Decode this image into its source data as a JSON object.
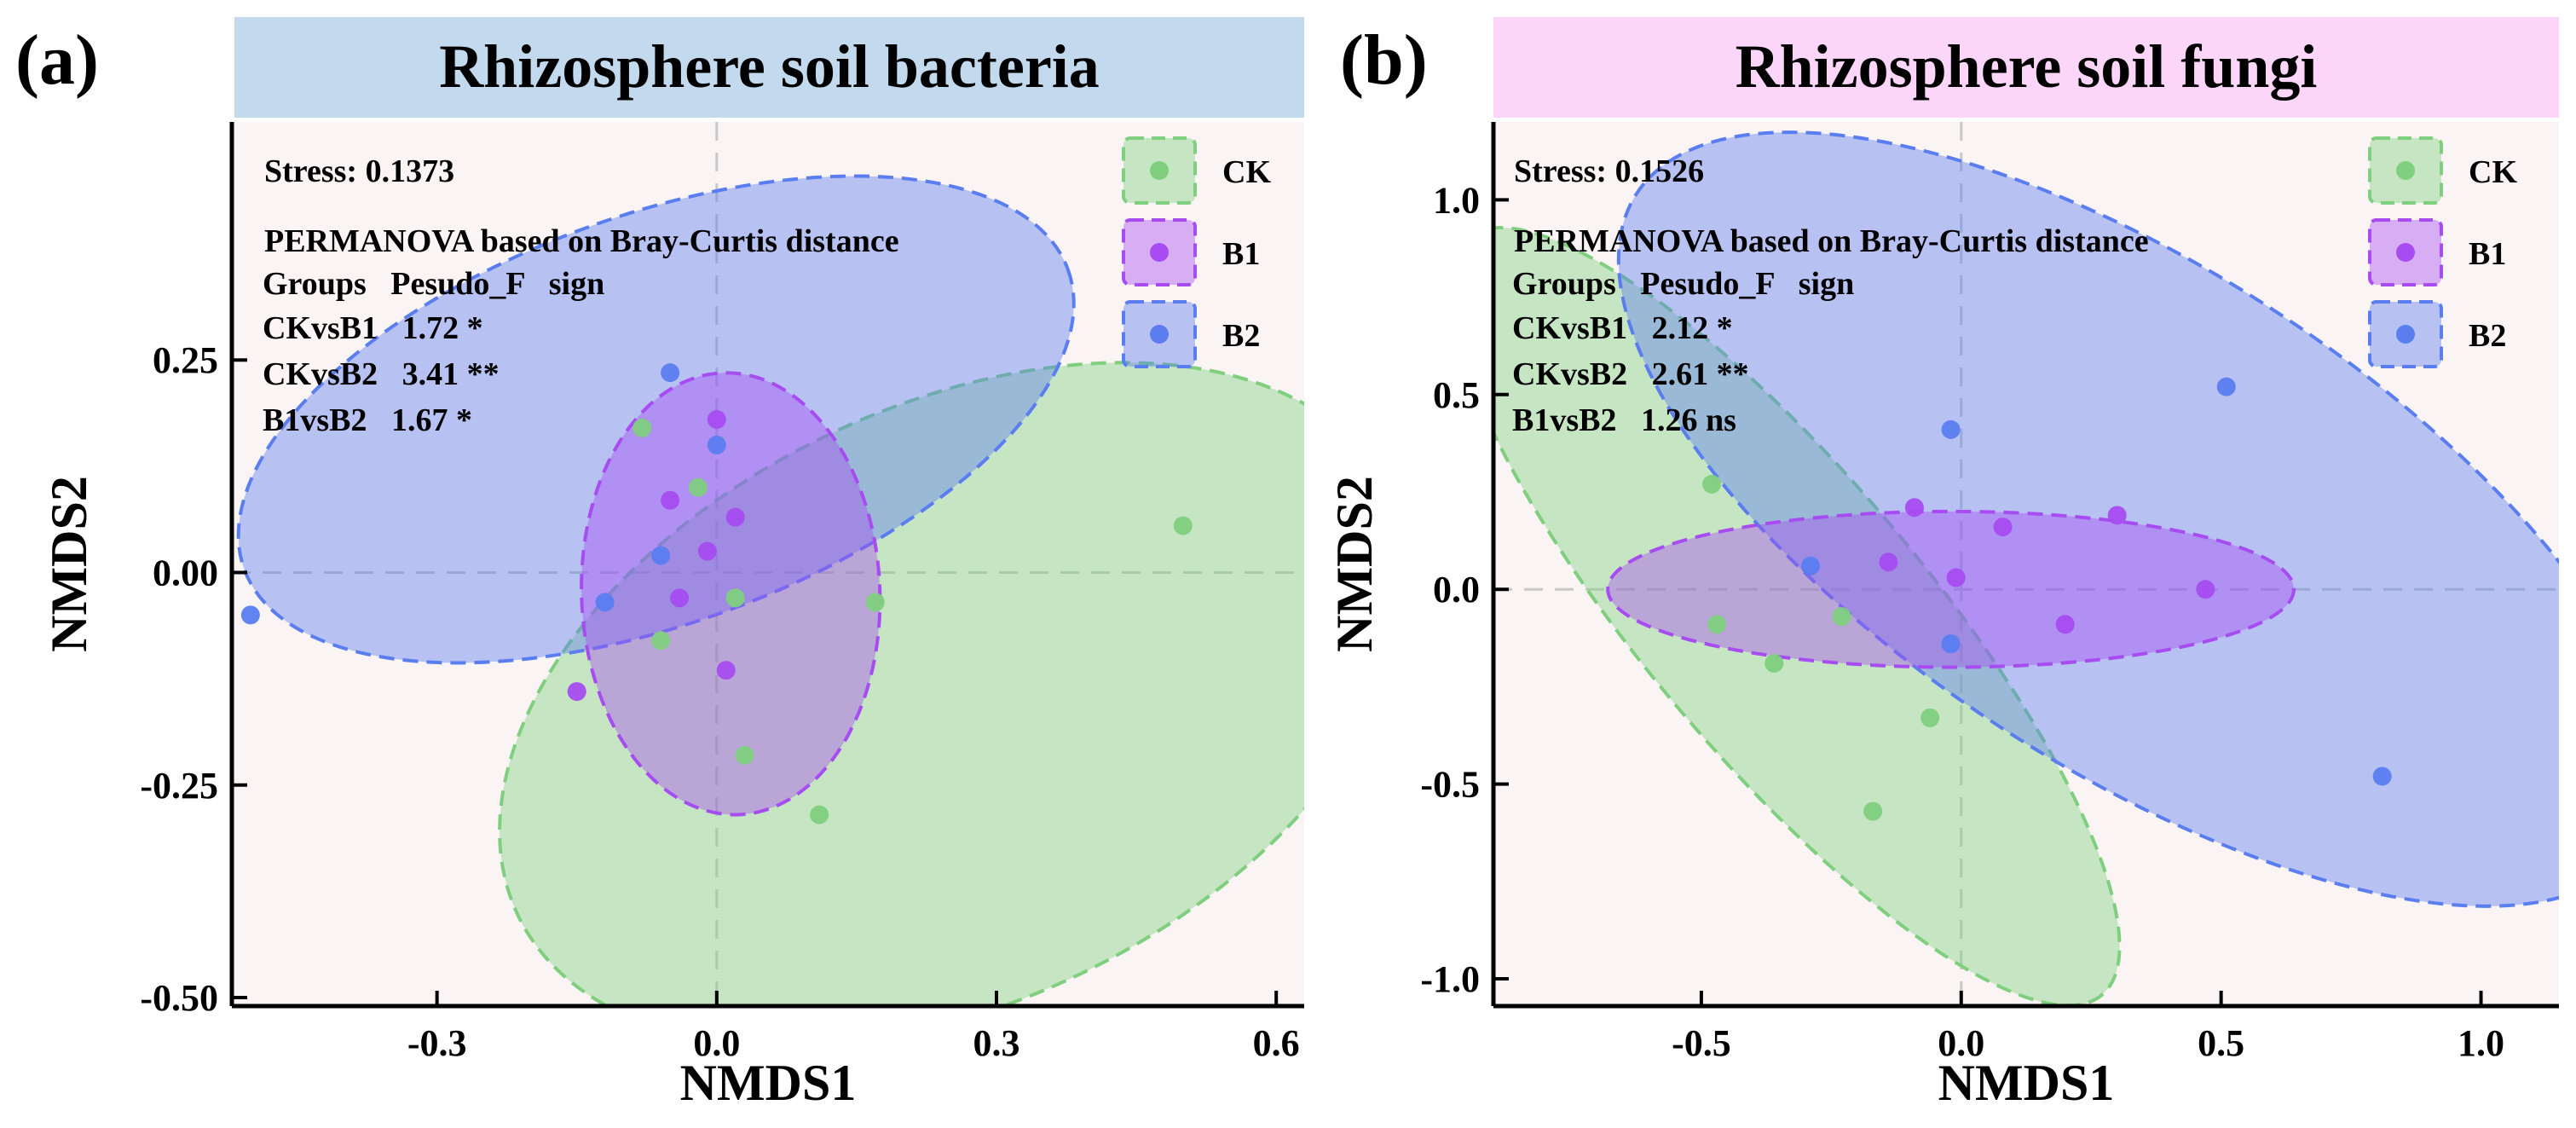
{
  "colors": {
    "CK": "#7fcf7f",
    "B1": "#a64cf0",
    "B2": "#5a7df0",
    "background": "#faf4f4",
    "titleA": "#c3d9ee",
    "titleB": "#fbd6f8"
  },
  "chart_data": [
    {
      "type": "scatter",
      "panel": "(a)",
      "title": "Rhizosphere soil bacteria",
      "xlabel": "NMDS1",
      "ylabel": "NMDS2",
      "xlim": [
        -0.52,
        0.63
      ],
      "ylim": [
        -0.51,
        0.53
      ],
      "xticks": [
        -0.3,
        0.0,
        0.3,
        0.6
      ],
      "xtick_labels": [
        "-0.3",
        "0.0",
        "0.3",
        "0.6"
      ],
      "yticks": [
        -0.5,
        -0.25,
        0.0,
        0.25
      ],
      "ytick_labels": [
        "-0.50",
        "-0.25",
        "0.00",
        "0.25"
      ],
      "annotations": {
        "stress": "Stress: 0.1373",
        "permanova": "PERMANOVA based on Bray-Curtis distance",
        "header": "Groups   Pesudo_F   sign",
        "rows": [
          "CKvsB1   1.72 *",
          "CKvsB2   3.41 **",
          "B1vsB2   1.67 *"
        ]
      },
      "legend": [
        "CK",
        "B1",
        "B2"
      ],
      "series": [
        {
          "name": "CK",
          "points": [
            [
              -0.08,
              0.17
            ],
            [
              0.5,
              0.055
            ],
            [
              0.17,
              -0.035
            ],
            [
              0.11,
              -0.285
            ],
            [
              0.03,
              -0.215
            ],
            [
              -0.02,
              0.1
            ],
            [
              0.02,
              -0.03
            ],
            [
              -0.06,
              -0.08
            ]
          ]
        },
        {
          "name": "B1",
          "points": [
            [
              0.0,
              0.18
            ],
            [
              -0.05,
              0.085
            ],
            [
              0.02,
              0.065
            ],
            [
              -0.01,
              0.025
            ],
            [
              0.01,
              -0.115
            ],
            [
              -0.15,
              -0.14
            ],
            [
              -0.04,
              -0.03
            ]
          ]
        },
        {
          "name": "B2",
          "points": [
            [
              -0.5,
              -0.05
            ],
            [
              -0.05,
              0.235
            ],
            [
              -0.12,
              -0.035
            ],
            [
              0.0,
              0.15
            ],
            [
              -0.06,
              0.02
            ]
          ]
        }
      ],
      "ellipses": [
        {
          "name": "CK",
          "cx": 0.255,
          "cy": -0.155,
          "rx": 0.52,
          "ry": 0.35,
          "angle": 26
        },
        {
          "name": "B2",
          "cx": -0.065,
          "cy": 0.18,
          "rx": 0.47,
          "ry": 0.24,
          "angle": 20
        },
        {
          "name": "B1",
          "cx": 0.015,
          "cy": -0.025,
          "rx": 0.16,
          "ry": 0.26,
          "angle": 2
        }
      ]
    },
    {
      "type": "scatter",
      "panel": "(b)",
      "title": "Rhizosphere soil fungi",
      "xlabel": "NMDS1",
      "ylabel": "NMDS2",
      "xlim": [
        -0.9,
        1.15
      ],
      "ylim": [
        -1.07,
        1.2
      ],
      "xticks": [
        -0.5,
        0.0,
        0.5,
        1.0
      ],
      "xtick_labels": [
        "-0.5",
        "0.0",
        "0.5",
        "1.0"
      ],
      "yticks": [
        -1.0,
        -0.5,
        0.0,
        0.5,
        1.0
      ],
      "ytick_labels": [
        "-1.0",
        "-0.5",
        "0.0",
        "0.5",
        "1.0"
      ],
      "annotations": {
        "stress": "Stress: 0.1526",
        "permanova": "PERMANOVA based on Bray-Curtis distance",
        "header": "Groups   Pesudo_F   sign",
        "rows": [
          "CKvsB1   2.12 *",
          "CKvsB2   2.61 **",
          "B1vsB2   1.26 ns"
        ]
      },
      "legend": [
        "CK",
        "B1",
        "B2"
      ],
      "series": [
        {
          "name": "CK",
          "points": [
            [
              -0.48,
              0.27
            ],
            [
              -0.47,
              -0.09
            ],
            [
              -0.36,
              -0.19
            ],
            [
              -0.06,
              -0.33
            ],
            [
              -0.17,
              -0.57
            ],
            [
              -0.23,
              -0.07
            ]
          ]
        },
        {
          "name": "B1",
          "points": [
            [
              -0.09,
              0.21
            ],
            [
              0.08,
              0.16
            ],
            [
              0.3,
              0.19
            ],
            [
              0.47,
              0.0
            ],
            [
              0.2,
              -0.09
            ],
            [
              -0.01,
              0.03
            ],
            [
              -0.14,
              0.07
            ]
          ]
        },
        {
          "name": "B2",
          "points": [
            [
              -0.02,
              0.41
            ],
            [
              0.51,
              0.52
            ],
            [
              0.81,
              -0.48
            ],
            [
              -0.02,
              -0.14
            ],
            [
              -0.29,
              0.06
            ]
          ]
        }
      ],
      "ellipses": [
        {
          "name": "CK",
          "cx": -0.34,
          "cy": -0.07,
          "rx": 0.95,
          "ry": 0.36,
          "angle": -50
        },
        {
          "name": "B2",
          "cx": 0.34,
          "cy": 0.18,
          "rx": 1.15,
          "ry": 0.64,
          "angle": -33
        },
        {
          "name": "B1",
          "cx": -0.02,
          "cy": 0.0,
          "rx": 0.66,
          "ry": 0.2,
          "angle": 0
        }
      ]
    }
  ]
}
